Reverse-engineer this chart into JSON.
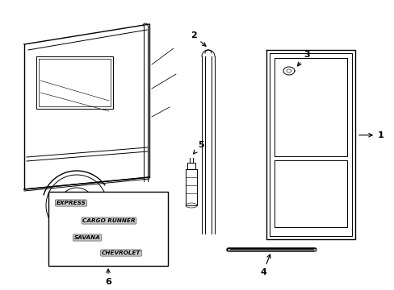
{
  "bg_color": "#ffffff",
  "line_color": "#000000",
  "figsize": [
    4.89,
    3.6
  ],
  "dpi": 100,
  "badge_labels": [
    "EXPRESS",
    "CARGO RUNNER",
    "SAVANA",
    "CHEVROLET"
  ]
}
